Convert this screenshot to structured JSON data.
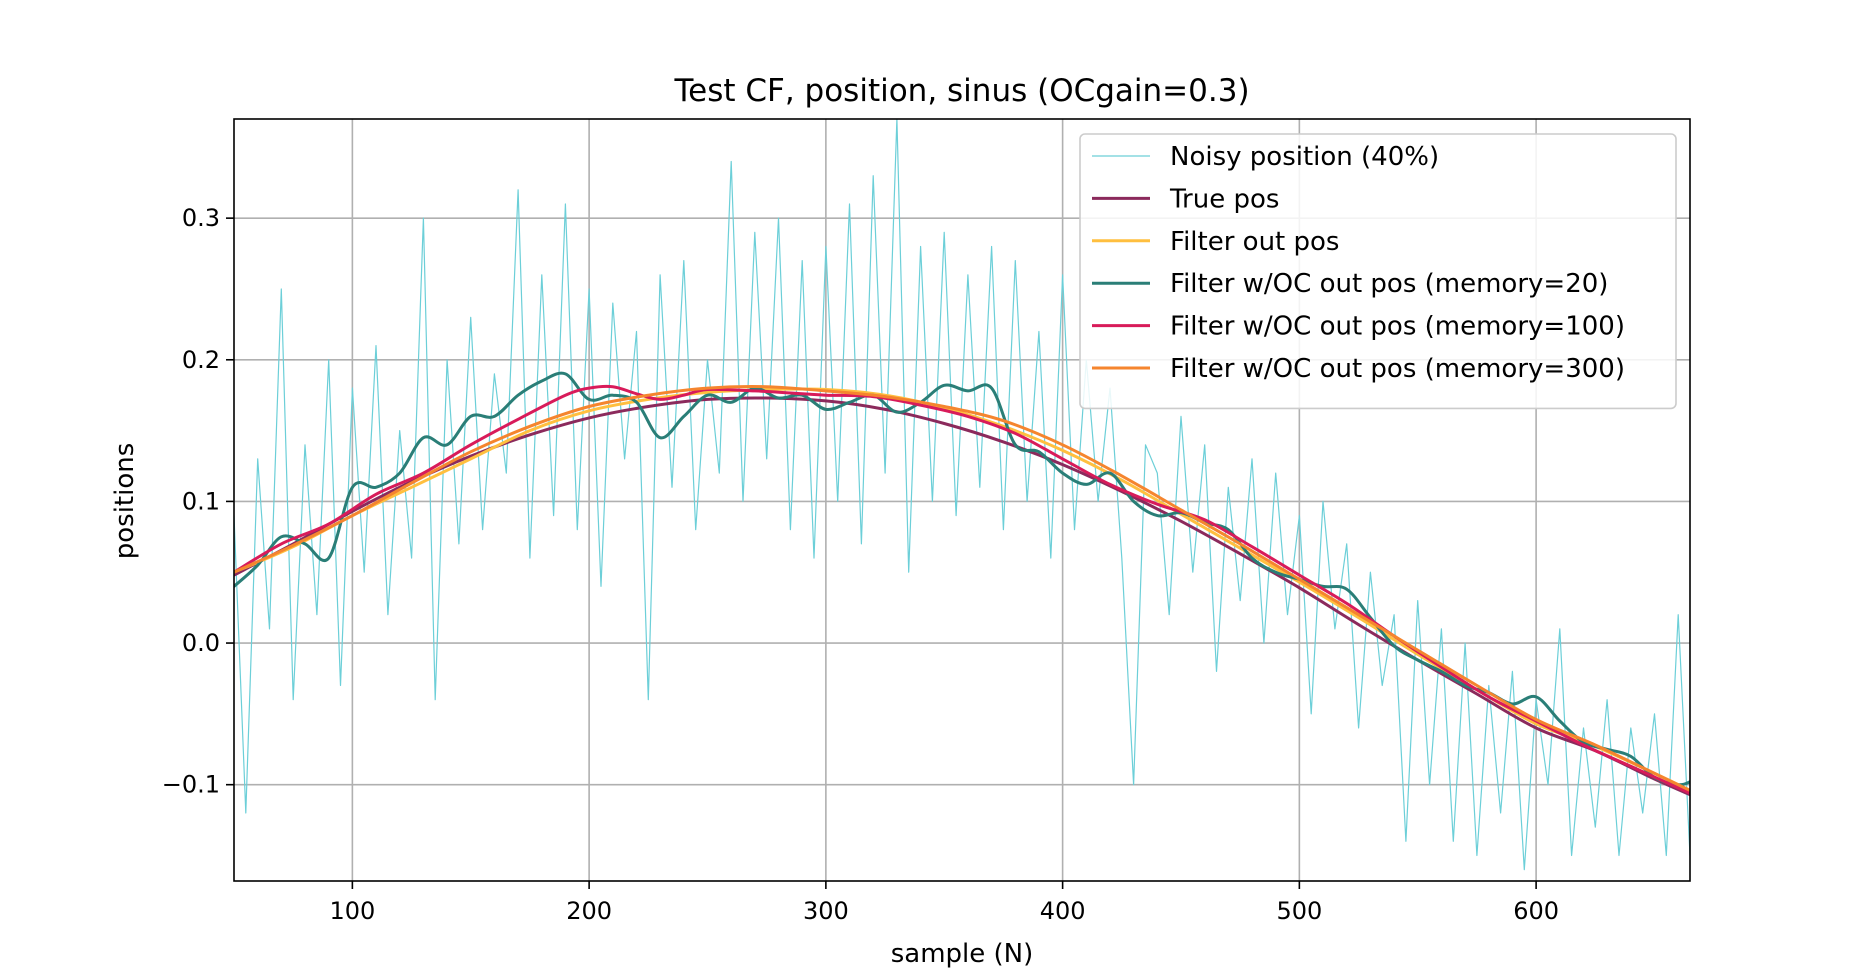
{
  "chart_data": {
    "type": "line",
    "title": "Test CF, position, sinus (OCgain=0.3)",
    "xlabel": "sample (N)",
    "ylabel": "positions",
    "xlim": [
      50,
      665
    ],
    "ylim": [
      -0.168,
      0.37
    ],
    "xticks": [
      100,
      200,
      300,
      400,
      500,
      600
    ],
    "xtick_labels": [
      "100",
      "200",
      "300",
      "400",
      "500",
      "600"
    ],
    "yticks": [
      -0.1,
      0.0,
      0.1,
      0.2,
      0.3
    ],
    "ytick_labels": [
      "−0.1",
      "0.0",
      "0.1",
      "0.2",
      "0.3"
    ],
    "grid": true,
    "legend_position": "top-right",
    "series": [
      {
        "name": "Noisy position (40%)",
        "color": "#6ccfd8",
        "style": "noisy-thin",
        "x": [
          50,
          55,
          60,
          65,
          70,
          75,
          80,
          85,
          90,
          95,
          100,
          105,
          110,
          115,
          120,
          125,
          130,
          135,
          140,
          145,
          150,
          155,
          160,
          165,
          170,
          175,
          180,
          185,
          190,
          195,
          200,
          205,
          210,
          215,
          220,
          225,
          230,
          235,
          240,
          245,
          250,
          255,
          260,
          265,
          270,
          275,
          280,
          285,
          290,
          295,
          300,
          305,
          310,
          315,
          320,
          325,
          330,
          335,
          340,
          345,
          350,
          355,
          360,
          365,
          370,
          375,
          380,
          385,
          390,
          395,
          400,
          405,
          410,
          415,
          420,
          425,
          430,
          435,
          440,
          445,
          450,
          455,
          460,
          465,
          470,
          475,
          480,
          485,
          490,
          495,
          500,
          505,
          510,
          515,
          520,
          525,
          530,
          535,
          540,
          545,
          550,
          555,
          560,
          565,
          570,
          575,
          580,
          585,
          590,
          595,
          600,
          605,
          610,
          615,
          620,
          625,
          630,
          635,
          640,
          645,
          650,
          655,
          660,
          665
        ],
        "values": [
          0.09,
          -0.12,
          0.13,
          0.01,
          0.25,
          -0.04,
          0.14,
          0.02,
          0.2,
          -0.03,
          0.18,
          0.05,
          0.21,
          0.02,
          0.15,
          0.06,
          0.3,
          -0.04,
          0.2,
          0.07,
          0.23,
          0.08,
          0.19,
          0.12,
          0.32,
          0.06,
          0.26,
          0.09,
          0.31,
          0.08,
          0.25,
          0.04,
          0.24,
          0.13,
          0.22,
          -0.04,
          0.26,
          0.11,
          0.27,
          0.08,
          0.2,
          0.12,
          0.34,
          0.1,
          0.29,
          0.13,
          0.3,
          0.08,
          0.27,
          0.06,
          0.28,
          0.1,
          0.31,
          0.07,
          0.33,
          0.12,
          0.37,
          0.05,
          0.28,
          0.1,
          0.29,
          0.09,
          0.26,
          0.11,
          0.28,
          0.08,
          0.27,
          0.1,
          0.22,
          0.06,
          0.26,
          0.08,
          0.2,
          0.1,
          0.18,
          0.06,
          -0.1,
          0.14,
          0.12,
          0.02,
          0.16,
          0.05,
          0.14,
          -0.02,
          0.11,
          0.03,
          0.13,
          0.0,
          0.12,
          0.02,
          0.09,
          -0.05,
          0.1,
          0.01,
          0.07,
          -0.06,
          0.05,
          -0.03,
          0.02,
          -0.14,
          0.03,
          -0.1,
          0.01,
          -0.14,
          0.0,
          -0.15,
          -0.03,
          -0.12,
          -0.02,
          -0.16,
          -0.04,
          -0.1,
          0.01,
          -0.15,
          -0.06,
          -0.13,
          -0.04,
          -0.15,
          -0.06,
          -0.12,
          -0.05,
          -0.15,
          0.02,
          -0.15
        ]
      },
      {
        "name": "True pos",
        "color": "#8b2a5c",
        "style": "smooth",
        "x": [
          50,
          75,
          100,
          125,
          150,
          175,
          200,
          225,
          250,
          275,
          300,
          325,
          350,
          375,
          400,
          425,
          450,
          475,
          500,
          525,
          550,
          575,
          600,
          625,
          650,
          665
        ],
        "values": [
          0.048,
          0.07,
          0.093,
          0.114,
          0.132,
          0.147,
          0.159,
          0.167,
          0.172,
          0.173,
          0.171,
          0.165,
          0.155,
          0.142,
          0.126,
          0.107,
          0.086,
          0.063,
          0.039,
          0.013,
          -0.012,
          -0.036,
          -0.06,
          -0.076,
          -0.096,
          -0.107
        ]
      },
      {
        "name": "Filter out pos",
        "color": "#ffbf3f",
        "style": "smooth",
        "x": [
          50,
          75,
          100,
          125,
          150,
          175,
          200,
          225,
          250,
          275,
          300,
          325,
          350,
          375,
          400,
          425,
          450,
          475,
          500,
          525,
          550,
          575,
          600,
          625,
          650,
          665
        ],
        "values": [
          0.05,
          0.068,
          0.09,
          0.11,
          0.13,
          0.15,
          0.164,
          0.172,
          0.177,
          0.179,
          0.179,
          0.175,
          0.166,
          0.153,
          0.136,
          0.115,
          0.091,
          0.067,
          0.043,
          0.018,
          -0.008,
          -0.033,
          -0.057,
          -0.073,
          -0.092,
          -0.104
        ]
      },
      {
        "name": "Filter w/OC out pos (memory=20)",
        "color": "#2a7e77",
        "style": "smooth",
        "x": [
          50,
          60,
          70,
          80,
          90,
          100,
          110,
          120,
          130,
          140,
          150,
          160,
          170,
          180,
          190,
          200,
          210,
          220,
          230,
          240,
          250,
          260,
          270,
          280,
          290,
          300,
          310,
          320,
          330,
          340,
          350,
          360,
          370,
          380,
          390,
          400,
          410,
          420,
          430,
          440,
          450,
          460,
          470,
          480,
          490,
          500,
          510,
          520,
          530,
          540,
          550,
          560,
          570,
          580,
          590,
          600,
          610,
          620,
          630,
          640,
          650,
          660,
          665
        ],
        "values": [
          0.04,
          0.055,
          0.075,
          0.07,
          0.06,
          0.11,
          0.11,
          0.12,
          0.145,
          0.14,
          0.16,
          0.16,
          0.175,
          0.185,
          0.19,
          0.172,
          0.175,
          0.17,
          0.145,
          0.16,
          0.175,
          0.17,
          0.18,
          0.173,
          0.175,
          0.165,
          0.17,
          0.175,
          0.163,
          0.17,
          0.182,
          0.178,
          0.18,
          0.14,
          0.135,
          0.12,
          0.112,
          0.12,
          0.1,
          0.09,
          0.092,
          0.085,
          0.08,
          0.06,
          0.05,
          0.045,
          0.04,
          0.038,
          0.018,
          -0.002,
          -0.012,
          -0.02,
          -0.03,
          -0.035,
          -0.043,
          -0.038,
          -0.055,
          -0.07,
          -0.075,
          -0.08,
          -0.095,
          -0.1,
          -0.098
        ]
      },
      {
        "name": "Filter w/OC out pos (memory=100)",
        "color": "#d81b5a",
        "style": "smooth",
        "x": [
          50,
          70,
          90,
          110,
          130,
          150,
          170,
          190,
          200,
          210,
          220,
          230,
          240,
          250,
          270,
          290,
          300,
          320,
          340,
          360,
          380,
          400,
          420,
          440,
          460,
          480,
          500,
          520,
          540,
          560,
          580,
          600,
          620,
          640,
          665
        ],
        "values": [
          0.05,
          0.07,
          0.084,
          0.105,
          0.12,
          0.14,
          0.158,
          0.175,
          0.18,
          0.181,
          0.176,
          0.172,
          0.175,
          0.179,
          0.178,
          0.176,
          0.175,
          0.174,
          0.168,
          0.16,
          0.148,
          0.13,
          0.112,
          0.098,
          0.087,
          0.068,
          0.048,
          0.028,
          0.005,
          -0.017,
          -0.038,
          -0.055,
          -0.072,
          -0.087,
          -0.106
        ]
      },
      {
        "name": "Filter w/OC out pos (memory=300)",
        "color": "#f5852e",
        "style": "smooth",
        "x": [
          50,
          75,
          100,
          125,
          150,
          175,
          200,
          225,
          250,
          275,
          300,
          325,
          350,
          375,
          400,
          425,
          450,
          475,
          500,
          525,
          550,
          575,
          600,
          625,
          650,
          665
        ],
        "values": [
          0.05,
          0.069,
          0.09,
          0.113,
          0.135,
          0.153,
          0.167,
          0.175,
          0.18,
          0.181,
          0.178,
          0.174,
          0.167,
          0.157,
          0.14,
          0.118,
          0.094,
          0.07,
          0.045,
          0.02,
          -0.005,
          -0.03,
          -0.054,
          -0.072,
          -0.092,
          -0.104
        ]
      }
    ]
  }
}
